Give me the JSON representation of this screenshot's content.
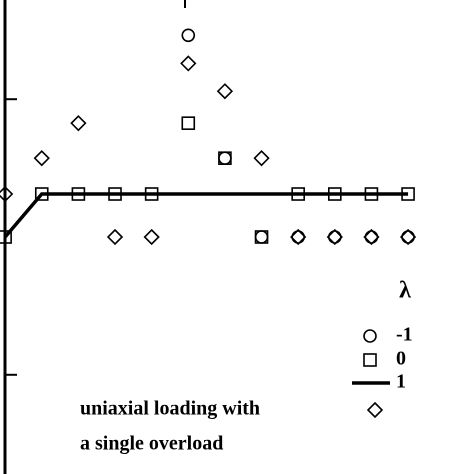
{
  "chart_data": {
    "type": "scatter",
    "legend_title": "λ",
    "series": [
      {
        "name": "-1",
        "marker": "circle",
        "color": "#000000",
        "x": [
          5,
          6,
          7,
          8,
          9,
          10,
          11
        ],
        "values": [
          12.32,
          7.86,
          5,
          5,
          5,
          5,
          5
        ]
      },
      {
        "name": "0",
        "marker": "square",
        "color": "#000000",
        "x": [
          0,
          1,
          2,
          3,
          4,
          5,
          6,
          7,
          8,
          9,
          10,
          11
        ],
        "values": [
          5,
          6.56,
          6.56,
          6.56,
          6.56,
          9.13,
          7.86,
          5,
          6.56,
          6.56,
          6.56,
          6.56
        ]
      },
      {
        "name": "1",
        "marker": "line",
        "color": "#000000",
        "x": [
          0,
          1,
          2,
          3,
          4,
          5,
          6,
          7,
          8,
          9,
          10,
          11
        ],
        "values": [
          5,
          6.56,
          6.56,
          6.56,
          6.56,
          6.56,
          6.56,
          6.56,
          6.56,
          6.56,
          6.56,
          6.56
        ]
      },
      {
        "marker": "diamond",
        "color": "#000000",
        "x": [
          0,
          1,
          2,
          3,
          4,
          5,
          6,
          7,
          8,
          9,
          10,
          11
        ],
        "values": [
          6.56,
          7.86,
          9.13,
          5,
          5,
          11.3,
          10.29,
          7.86,
          5,
          5,
          5,
          5
        ]
      }
    ],
    "annotations": [
      "uniaxial loading with",
      "a single overload"
    ],
    "xlim": [
      -0.14,
      12.8
    ],
    "ylim": [
      -3.6,
      13.6
    ],
    "yticks": [
      0,
      10
    ]
  }
}
